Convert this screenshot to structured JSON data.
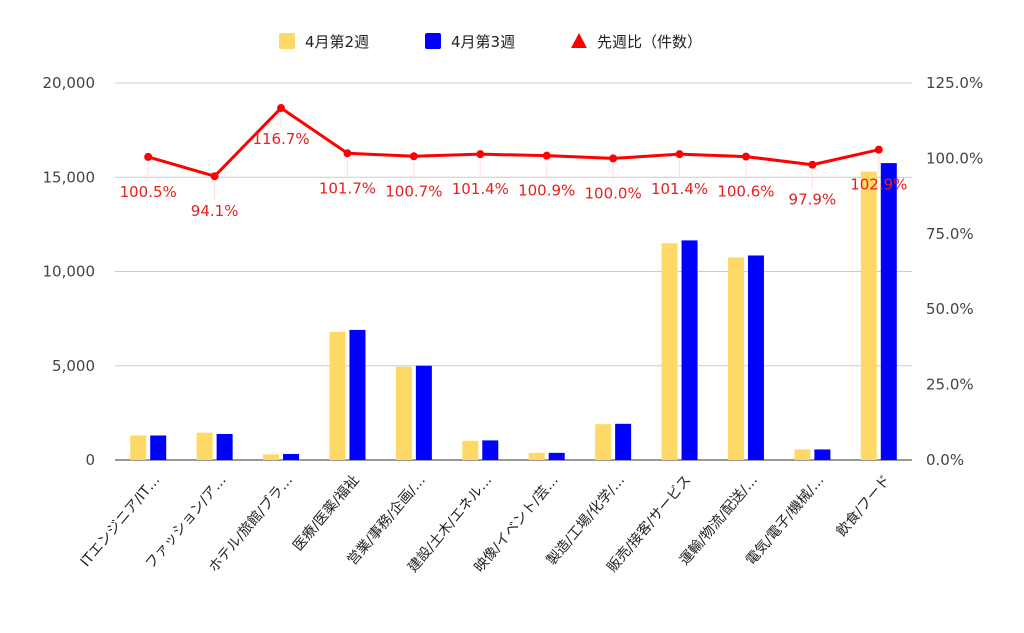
{
  "chart_data": {
    "type": "bar",
    "categories": [
      "ITエンジニア/IT…",
      "ファッション/ア…",
      "ホテル/旅館/ブラ…",
      "医療/医薬/福祉",
      "営業/事務/企画/…",
      "建設/土木/エネル…",
      "映像/イベント/芸…",
      "製造/工場/化学/…",
      "販売/接客/サービス",
      "運輸/物流/配送/…",
      "電気/電子/機械/…",
      "飲食/フード"
    ],
    "series": [
      {
        "name": "4月第2週",
        "axis": "left",
        "kind": "bar",
        "color": "#ffd966",
        "values": [
          1300,
          1450,
          300,
          6800,
          4950,
          1020,
          380,
          1900,
          11500,
          10750,
          560,
          15300
        ]
      },
      {
        "name": "4月第3週",
        "axis": "left",
        "kind": "bar",
        "color": "#0000ff",
        "values": [
          1300,
          1380,
          320,
          6900,
          5000,
          1040,
          380,
          1920,
          11650,
          10850,
          560,
          15750
        ]
      },
      {
        "name": "先週比（件数）",
        "axis": "right",
        "kind": "line",
        "color": "#ff0000",
        "values": [
          100.5,
          94.1,
          116.7,
          101.7,
          100.7,
          101.4,
          100.9,
          100.0,
          101.4,
          100.6,
          97.9,
          102.9
        ]
      }
    ],
    "point_labels": [
      "100.5%",
      "94.1%",
      "116.7%",
      "101.7%",
      "100.7%",
      "101.4%",
      "100.9%",
      "100.0%",
      "101.4%",
      "100.6%",
      "97.9%",
      "102.9%"
    ],
    "y_left": {
      "min": 0,
      "max": 20000,
      "ticks": [
        0,
        5000,
        10000,
        15000,
        20000
      ],
      "tick_labels": [
        "0",
        "5,000",
        "10,000",
        "15,000",
        "20,000"
      ]
    },
    "y_right": {
      "min": 0,
      "max": 125,
      "ticks": [
        0,
        25,
        50,
        75,
        100,
        125
      ],
      "tick_labels": [
        "0.0%",
        "25.0%",
        "50.0%",
        "75.0%",
        "100.0%",
        "125.0%"
      ]
    },
    "legend_position": "top",
    "grid": true
  }
}
